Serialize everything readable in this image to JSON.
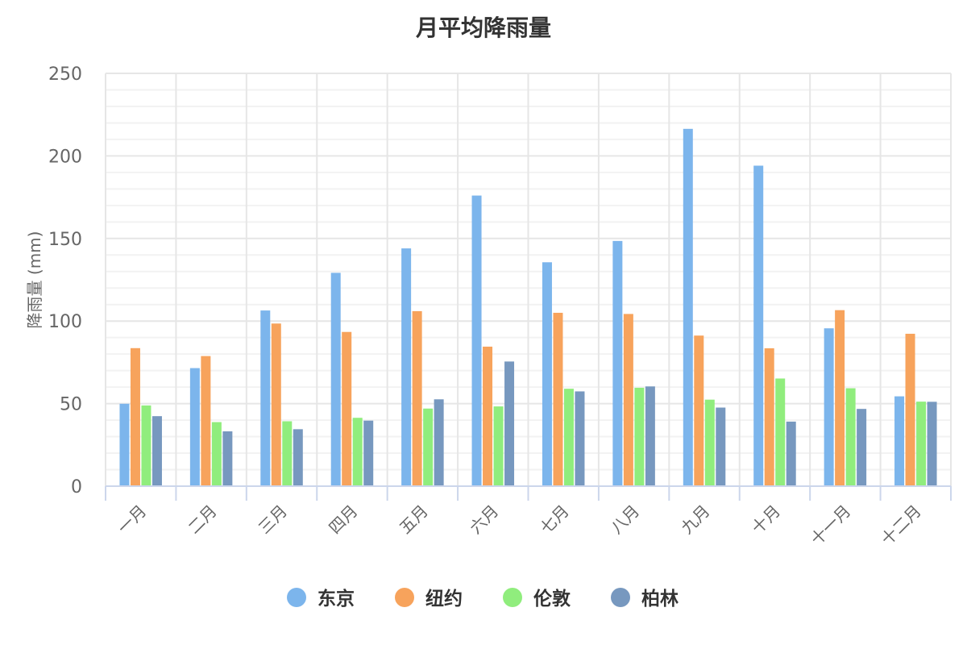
{
  "chart_data": {
    "type": "bar",
    "title": "月平均降雨量",
    "xlabel": "",
    "ylabel": "降雨量 (mm)",
    "ylim": [
      0,
      250
    ],
    "yticks": [
      0,
      50,
      100,
      150,
      200,
      250
    ],
    "grid": true,
    "legend_position": "bottom",
    "categories": [
      "一月",
      "二月",
      "三月",
      "四月",
      "五月",
      "六月",
      "七月",
      "八月",
      "九月",
      "十月",
      "十一月",
      "十二月"
    ],
    "series": [
      {
        "name": "东京",
        "color": "#7cb5ec",
        "values": [
          49.9,
          71.5,
          106.4,
          129.2,
          144.0,
          176.0,
          135.6,
          148.5,
          216.4,
          194.1,
          95.6,
          54.4
        ]
      },
      {
        "name": "纽约",
        "color": "#f7a35c",
        "values": [
          83.6,
          78.8,
          98.5,
          93.4,
          106.0,
          84.5,
          105.0,
          104.3,
          91.2,
          83.5,
          106.6,
          92.3
        ]
      },
      {
        "name": "伦敦",
        "color": "#90ed7d",
        "values": [
          48.9,
          38.8,
          39.3,
          41.4,
          47.0,
          48.3,
          59.0,
          59.6,
          52.4,
          65.2,
          59.3,
          51.2
        ]
      },
      {
        "name": "柏林",
        "color": "#7798bf",
        "values": [
          42.4,
          33.2,
          34.5,
          39.7,
          52.6,
          75.5,
          57.4,
          60.4,
          47.6,
          39.1,
          46.8,
          51.1
        ]
      }
    ]
  }
}
